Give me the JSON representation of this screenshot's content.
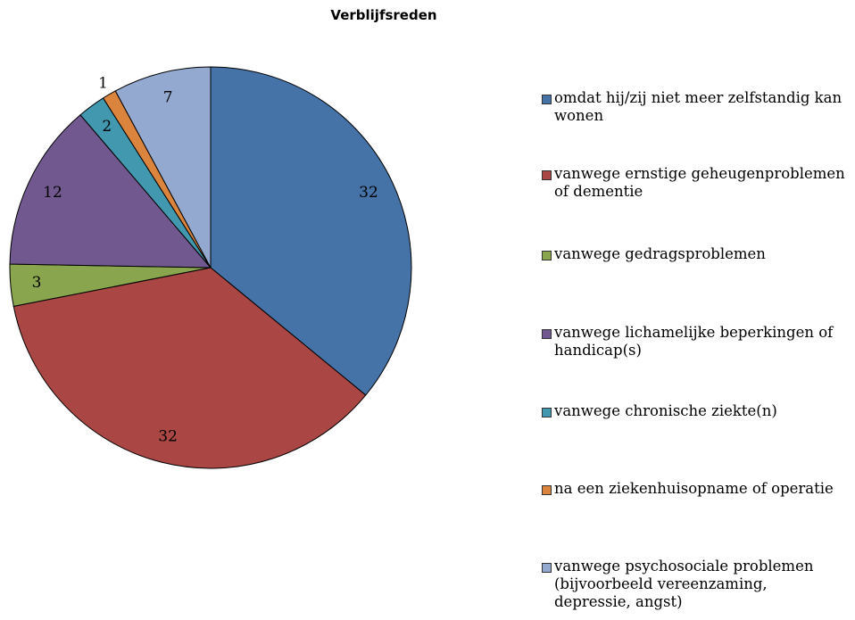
{
  "chart_data": {
    "type": "pie",
    "title": "Verblijfsreden",
    "categories": [
      "omdat hij/zij niet meer zelfstandig kan wonen",
      "vanwege ernstige geheugenproblemen of dementie",
      "vanwege gedragsproblemen",
      "vanwege lichamelijke beperkingen of handicap(s)",
      "vanwege chronische ziekte(n)",
      "na een ziekenhuisopname of operatie",
      "vanwege psychosociale problemen (bijvoorbeeld vereenzaming, depressie, angst)"
    ],
    "values": [
      32,
      32,
      3,
      12,
      2,
      1,
      7
    ],
    "colors": [
      "#4572a7",
      "#aa4643",
      "#89a54e",
      "#71588f",
      "#4198af",
      "#db843d",
      "#93a9cf"
    ],
    "legend": "right"
  }
}
